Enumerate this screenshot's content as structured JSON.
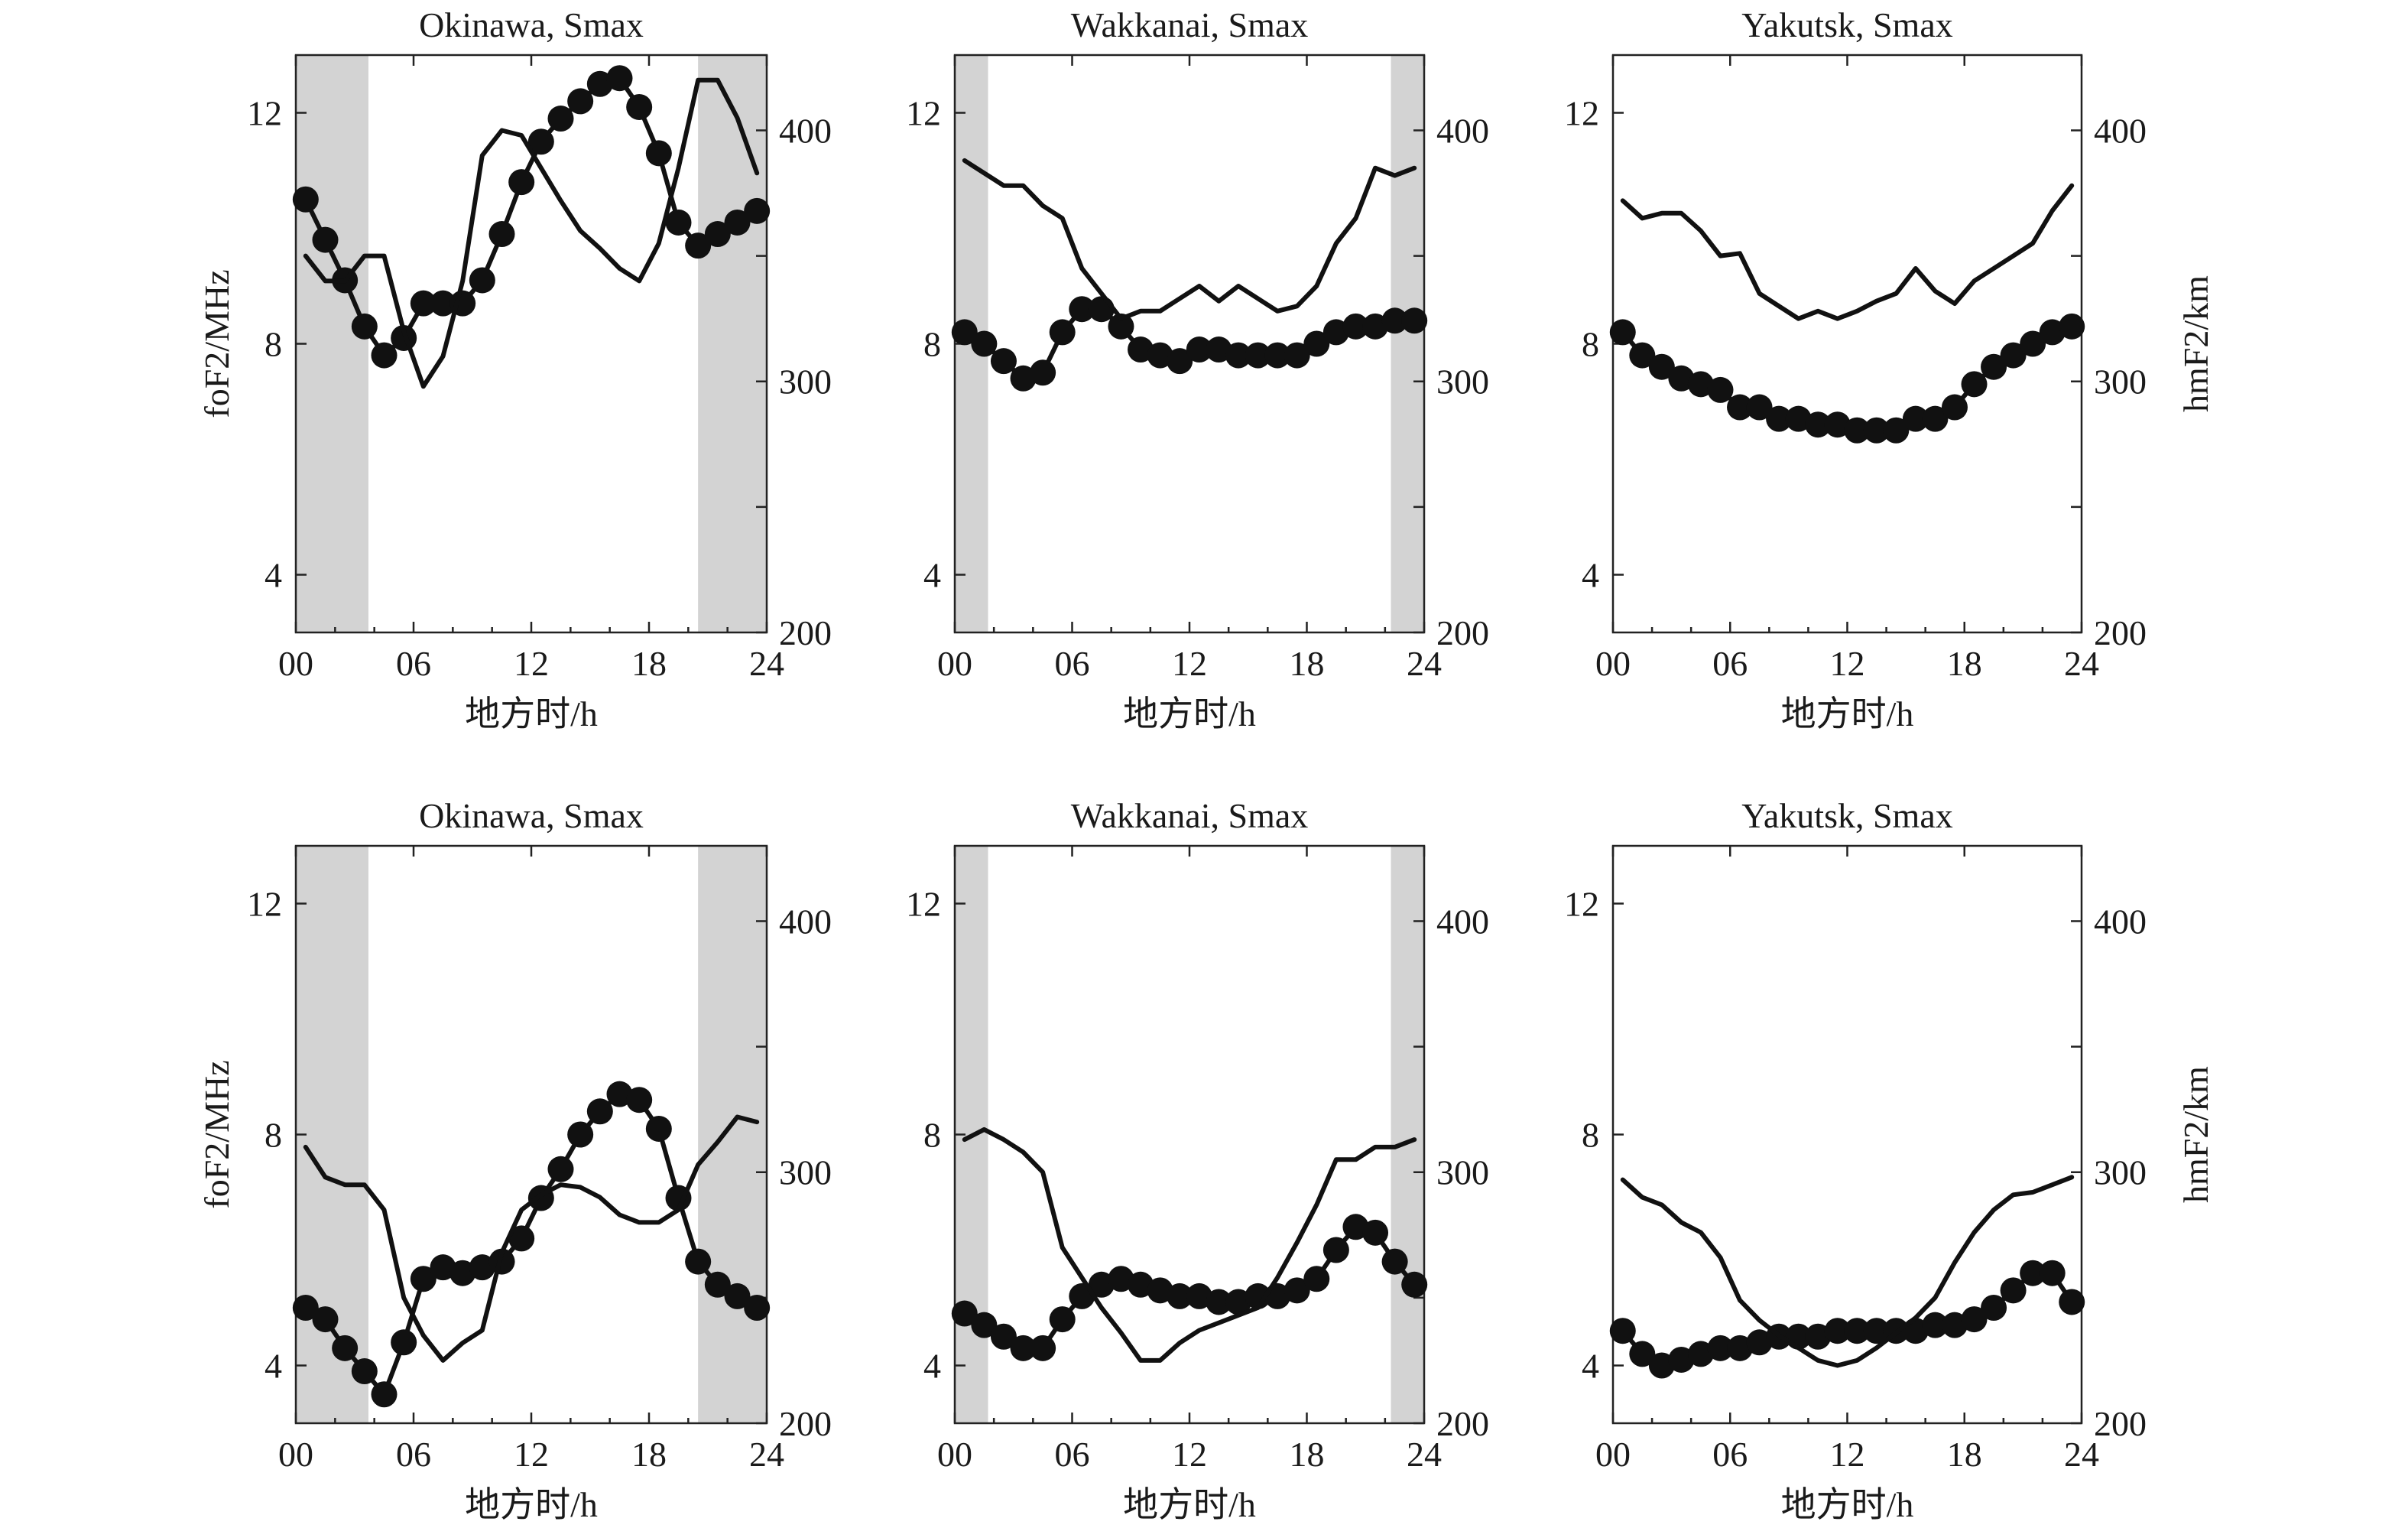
{
  "chart_data": [
    {
      "type": "line",
      "title": "Okinawa, Smax",
      "xlabel": "地方时/h",
      "ylabel_left": "foF2/MHz",
      "ylabel_right": "",
      "xticks": [
        "00",
        "06",
        "12",
        "18",
        "24"
      ],
      "yticks_left": [
        "4",
        "8",
        "12"
      ],
      "yticks_right": [
        "200",
        "300",
        "400"
      ],
      "xlim": [
        0,
        24
      ],
      "ylim_left": [
        3,
        13
      ],
      "ylim_right": [
        200,
        430
      ],
      "shaded_intervals": [
        [
          0,
          3.7
        ],
        [
          20.5,
          24
        ]
      ],
      "series": [
        {
          "axis": "left",
          "style": "dots",
          "x": [
            0.5,
            1.5,
            2.5,
            3.5,
            4.5,
            5.5,
            6.5,
            7.5,
            8.5,
            9.5,
            10.5,
            11.5,
            12.5,
            13.5,
            14.5,
            15.5,
            16.5,
            17.5,
            18.5,
            19.5,
            20.5,
            21.5,
            22.5,
            23.5
          ],
          "values": [
            10.5,
            9.8,
            9.1,
            8.3,
            7.8,
            8.1,
            8.7,
            8.7,
            8.7,
            9.1,
            9.9,
            10.8,
            11.5,
            11.9,
            12.2,
            12.5,
            12.6,
            12.1,
            11.3,
            10.1,
            9.7,
            9.9,
            10.1,
            10.3
          ]
        },
        {
          "axis": "right",
          "style": "line",
          "x": [
            0.5,
            1.5,
            2.5,
            3.5,
            4.5,
            5.5,
            6.5,
            7.5,
            8.5,
            9.5,
            10.5,
            11.5,
            12.5,
            13.5,
            14.5,
            15.5,
            16.5,
            17.5,
            18.5,
            19.5,
            20.5,
            21.5,
            22.5,
            23.5
          ],
          "values": [
            350,
            340,
            340,
            350,
            350,
            320,
            298,
            310,
            340,
            390,
            400,
            398,
            385,
            372,
            360,
            353,
            345,
            340,
            355,
            385,
            420,
            420,
            405,
            383
          ]
        }
      ]
    },
    {
      "type": "line",
      "title": "Wakkanai, Smax",
      "xlabel": "地方时/h",
      "ylabel_left": "",
      "ylabel_right": "",
      "xticks": [
        "00",
        "06",
        "12",
        "18",
        "24"
      ],
      "yticks_left": [
        "4",
        "8",
        "12"
      ],
      "yticks_right": [
        "200",
        "300",
        "400"
      ],
      "xlim": [
        0,
        24
      ],
      "ylim_left": [
        3,
        13
      ],
      "ylim_right": [
        200,
        430
      ],
      "shaded_intervals": [
        [
          0,
          1.7
        ],
        [
          22.3,
          24
        ]
      ],
      "series": [
        {
          "axis": "left",
          "style": "dots",
          "x": [
            0.5,
            1.5,
            2.5,
            3.5,
            4.5,
            5.5,
            6.5,
            7.5,
            8.5,
            9.5,
            10.5,
            11.5,
            12.5,
            13.5,
            14.5,
            15.5,
            16.5,
            17.5,
            18.5,
            19.5,
            20.5,
            21.5,
            22.5,
            23.5
          ],
          "values": [
            8.2,
            8.0,
            7.7,
            7.4,
            7.5,
            8.2,
            8.6,
            8.6,
            8.3,
            7.9,
            7.8,
            7.7,
            7.9,
            7.9,
            7.8,
            7.8,
            7.8,
            7.8,
            8.0,
            8.2,
            8.3,
            8.3,
            8.4,
            8.4
          ]
        },
        {
          "axis": "right",
          "style": "line",
          "x": [
            0.5,
            1.5,
            2.5,
            3.5,
            4.5,
            5.5,
            6.5,
            7.5,
            8.5,
            9.5,
            10.5,
            11.5,
            12.5,
            13.5,
            14.5,
            15.5,
            16.5,
            17.5,
            18.5,
            19.5,
            20.5,
            21.5,
            22.5,
            23.5
          ],
          "values": [
            388,
            383,
            378,
            378,
            370,
            365,
            345,
            335,
            325,
            328,
            328,
            333,
            338,
            332,
            338,
            333,
            328,
            330,
            338,
            355,
            365,
            385,
            382,
            385
          ]
        }
      ]
    },
    {
      "type": "line",
      "title": "Yakutsk, Smax",
      "xlabel": "地方时/h",
      "ylabel_left": "",
      "ylabel_right": "hmF2/km",
      "xticks": [
        "00",
        "06",
        "12",
        "18",
        "24"
      ],
      "yticks_left": [
        "4",
        "8",
        "12"
      ],
      "yticks_right": [
        "200",
        "300",
        "400"
      ],
      "xlim": [
        0,
        24
      ],
      "ylim_left": [
        3,
        13
      ],
      "ylim_right": [
        200,
        430
      ],
      "shaded_intervals": [],
      "series": [
        {
          "axis": "left",
          "style": "dots",
          "x": [
            0.5,
            1.5,
            2.5,
            3.5,
            4.5,
            5.5,
            6.5,
            7.5,
            8.5,
            9.5,
            10.5,
            11.5,
            12.5,
            13.5,
            14.5,
            15.5,
            16.5,
            17.5,
            18.5,
            19.5,
            20.5,
            21.5,
            22.5,
            23.5
          ],
          "values": [
            8.2,
            7.8,
            7.6,
            7.4,
            7.3,
            7.2,
            6.9,
            6.9,
            6.7,
            6.7,
            6.6,
            6.6,
            6.5,
            6.5,
            6.5,
            6.7,
            6.7,
            6.9,
            7.3,
            7.6,
            7.8,
            8.0,
            8.2,
            8.3
          ]
        },
        {
          "axis": "right",
          "style": "line",
          "x": [
            0.5,
            1.5,
            2.5,
            3.5,
            4.5,
            5.5,
            6.5,
            7.5,
            8.5,
            9.5,
            10.5,
            11.5,
            12.5,
            13.5,
            14.5,
            15.5,
            16.5,
            17.5,
            18.5,
            19.5,
            20.5,
            21.5,
            22.5,
            23.5
          ],
          "values": [
            372,
            365,
            367,
            367,
            360,
            350,
            351,
            335,
            330,
            325,
            328,
            325,
            328,
            332,
            335,
            345,
            336,
            331,
            340,
            345,
            350,
            355,
            368,
            378
          ]
        }
      ]
    },
    {
      "type": "line",
      "title": "Okinawa, Smax",
      "xlabel": "地方时/h",
      "ylabel_left": "foF2/MHz",
      "ylabel_right": "",
      "xticks": [
        "00",
        "06",
        "12",
        "18",
        "24"
      ],
      "yticks_left": [
        "4",
        "8",
        "12"
      ],
      "yticks_right": [
        "200",
        "300",
        "400"
      ],
      "xlim": [
        0,
        24
      ],
      "ylim_left": [
        3,
        13
      ],
      "ylim_right": [
        200,
        430
      ],
      "shaded_intervals": [
        [
          0,
          3.7
        ],
        [
          20.5,
          24
        ]
      ],
      "series": [
        {
          "axis": "left",
          "style": "dots",
          "x": [
            0.5,
            1.5,
            2.5,
            3.5,
            4.5,
            5.5,
            6.5,
            7.5,
            8.5,
            9.5,
            10.5,
            11.5,
            12.5,
            13.5,
            14.5,
            15.5,
            16.5,
            17.5,
            18.5,
            19.5,
            20.5,
            21.5,
            22.5,
            23.5
          ],
          "values": [
            5.0,
            4.8,
            4.3,
            3.9,
            3.5,
            4.4,
            5.5,
            5.7,
            5.6,
            5.7,
            5.8,
            6.2,
            6.9,
            7.4,
            8.0,
            8.4,
            8.7,
            8.6,
            8.1,
            6.9,
            5.8,
            5.4,
            5.2,
            5.0
          ]
        },
        {
          "axis": "right",
          "style": "line",
          "x": [
            0.5,
            1.5,
            2.5,
            3.5,
            4.5,
            5.5,
            6.5,
            7.5,
            8.5,
            9.5,
            10.5,
            11.5,
            12.5,
            13.5,
            14.5,
            15.5,
            16.5,
            17.5,
            18.5,
            19.5,
            20.5,
            21.5,
            22.5,
            23.5
          ],
          "values": [
            310,
            298,
            295,
            295,
            285,
            250,
            235,
            225,
            232,
            237,
            268,
            285,
            291,
            295,
            294,
            290,
            283,
            280,
            280,
            285,
            303,
            312,
            322,
            320
          ]
        }
      ]
    },
    {
      "type": "line",
      "title": "Wakkanai, Smax",
      "xlabel": "地方时/h",
      "ylabel_left": "",
      "ylabel_right": "",
      "xticks": [
        "00",
        "06",
        "12",
        "18",
        "24"
      ],
      "yticks_left": [
        "4",
        "8",
        "12"
      ],
      "yticks_right": [
        "200",
        "300",
        "400"
      ],
      "xlim": [
        0,
        24
      ],
      "ylim_left": [
        3,
        13
      ],
      "ylim_right": [
        200,
        430
      ],
      "shaded_intervals": [
        [
          0,
          1.7
        ],
        [
          22.3,
          24
        ]
      ],
      "series": [
        {
          "axis": "left",
          "style": "dots",
          "x": [
            0.5,
            1.5,
            2.5,
            3.5,
            4.5,
            5.5,
            6.5,
            7.5,
            8.5,
            9.5,
            10.5,
            11.5,
            12.5,
            13.5,
            14.5,
            15.5,
            16.5,
            17.5,
            18.5,
            19.5,
            20.5,
            21.5,
            22.5,
            23.5
          ],
          "values": [
            4.9,
            4.7,
            4.5,
            4.3,
            4.3,
            4.8,
            5.2,
            5.4,
            5.5,
            5.4,
            5.3,
            5.2,
            5.2,
            5.1,
            5.1,
            5.2,
            5.2,
            5.3,
            5.5,
            6.0,
            6.4,
            6.3,
            5.8,
            5.4
          ]
        },
        {
          "axis": "right",
          "style": "line",
          "x": [
            0.5,
            1.5,
            2.5,
            3.5,
            4.5,
            5.5,
            6.5,
            7.5,
            8.5,
            9.5,
            10.5,
            11.5,
            12.5,
            13.5,
            14.5,
            15.5,
            16.5,
            17.5,
            18.5,
            19.5,
            20.5,
            21.5,
            22.5,
            23.5
          ],
          "values": [
            313,
            317,
            313,
            308,
            300,
            270,
            258,
            246,
            236,
            225,
            225,
            232,
            237,
            240,
            243,
            246,
            258,
            272,
            287,
            305,
            305,
            310,
            310,
            313
          ]
        }
      ]
    },
    {
      "type": "line",
      "title": "Yakutsk, Smax",
      "xlabel": "地方时/h",
      "ylabel_left": "",
      "ylabel_right": "hmF2/km",
      "xticks": [
        "00",
        "06",
        "12",
        "18",
        "24"
      ],
      "yticks_left": [
        "4",
        "8",
        "12"
      ],
      "yticks_right": [
        "200",
        "300",
        "400"
      ],
      "xlim": [
        0,
        24
      ],
      "ylim_left": [
        3,
        13
      ],
      "ylim_right": [
        200,
        430
      ],
      "shaded_intervals": [],
      "series": [
        {
          "axis": "left",
          "style": "dots",
          "x": [
            0.5,
            1.5,
            2.5,
            3.5,
            4.5,
            5.5,
            6.5,
            7.5,
            8.5,
            9.5,
            10.5,
            11.5,
            12.5,
            13.5,
            14.5,
            15.5,
            16.5,
            17.5,
            18.5,
            19.5,
            20.5,
            21.5,
            22.5,
            23.5
          ],
          "values": [
            4.6,
            4.2,
            4.0,
            4.1,
            4.2,
            4.3,
            4.3,
            4.4,
            4.5,
            4.5,
            4.5,
            4.6,
            4.6,
            4.6,
            4.6,
            4.6,
            4.7,
            4.7,
            4.8,
            5.0,
            5.3,
            5.6,
            5.6,
            5.1
          ]
        },
        {
          "axis": "right",
          "style": "line",
          "x": [
            0.5,
            1.5,
            2.5,
            3.5,
            4.5,
            5.5,
            6.5,
            7.5,
            8.5,
            9.5,
            10.5,
            11.5,
            12.5,
            13.5,
            14.5,
            15.5,
            16.5,
            17.5,
            18.5,
            19.5,
            20.5,
            21.5,
            22.5,
            23.5
          ],
          "values": [
            297,
            290,
            287,
            280,
            276,
            266,
            249,
            241,
            235,
            230,
            225,
            223,
            225,
            230,
            236,
            242,
            250,
            264,
            276,
            285,
            291,
            292,
            295,
            298
          ]
        }
      ]
    }
  ]
}
